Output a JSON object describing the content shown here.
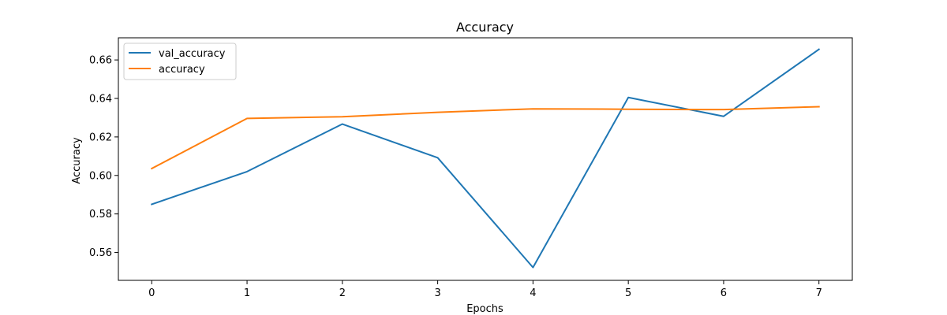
{
  "chart_data": {
    "type": "line",
    "title": "Accuracy",
    "xlabel": "Epochs",
    "ylabel": "Accuracy",
    "x": [
      0,
      1,
      2,
      3,
      4,
      5,
      6,
      7
    ],
    "xlim": [
      -0.35,
      7.35
    ],
    "ylim": [
      0.5455,
      0.6715
    ],
    "x_ticks": [
      0,
      1,
      2,
      3,
      4,
      5,
      6,
      7
    ],
    "y_ticks": [
      0.56,
      0.58,
      0.6,
      0.62,
      0.64,
      0.66
    ],
    "y_tick_labels": [
      "0.56",
      "0.58",
      "0.60",
      "0.62",
      "0.64",
      "0.66"
    ],
    "grid": false,
    "legend_position": "top-left",
    "series": [
      {
        "name": "val_accuracy",
        "color": "#1f77b4",
        "values": [
          0.585,
          0.602,
          0.6267,
          0.6092,
          0.5522,
          0.6405,
          0.6307,
          0.6655
        ]
      },
      {
        "name": "accuracy",
        "color": "#ff7f0e",
        "values": [
          0.6036,
          0.6296,
          0.6305,
          0.6328,
          0.6346,
          0.6344,
          0.6342,
          0.6357
        ]
      }
    ]
  }
}
